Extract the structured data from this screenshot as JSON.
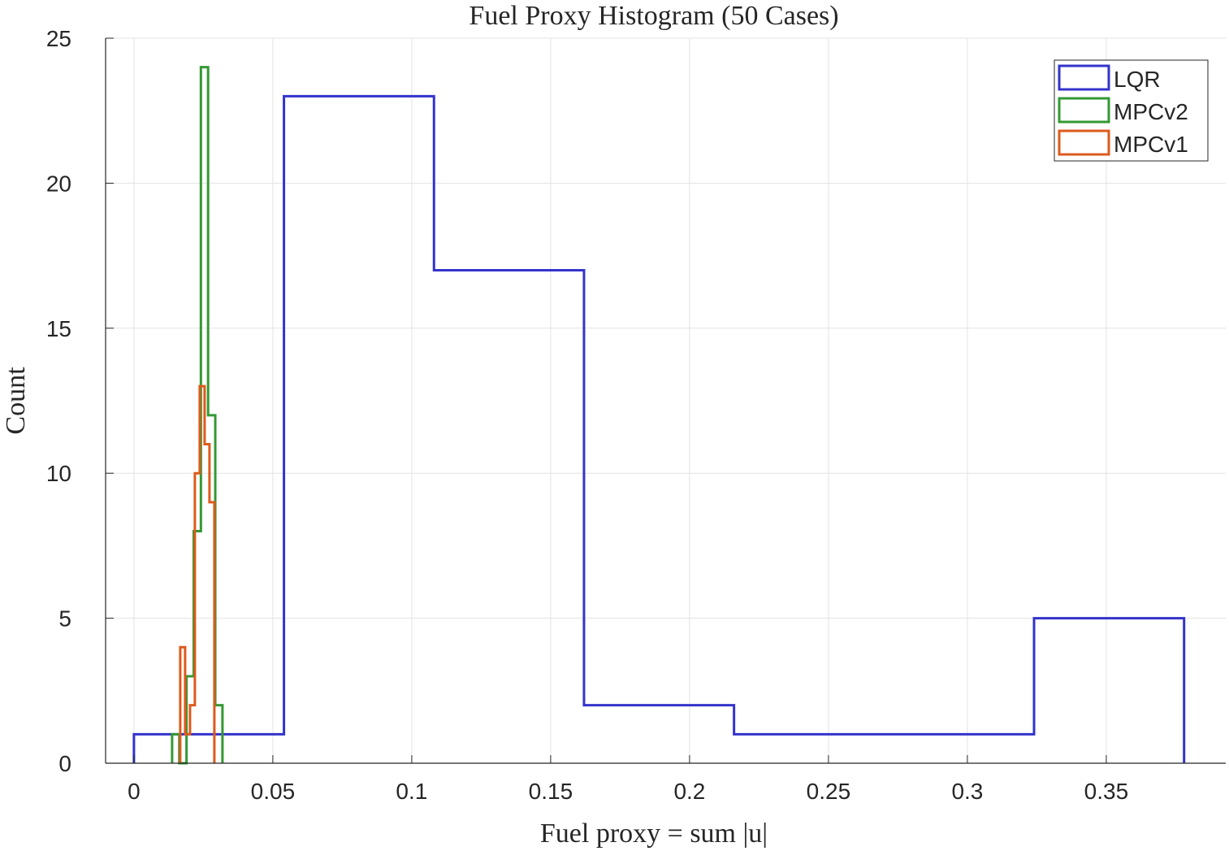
{
  "chart_data": {
    "type": "histogram-stairs",
    "title": "Fuel Proxy Histogram (50 Cases)",
    "xlabel": "Fuel proxy = sum |u|",
    "ylabel": "Count",
    "xlim": [
      -0.0102,
      0.393
    ],
    "ylim": [
      0,
      25
    ],
    "xticks": [
      0,
      0.05,
      0.1,
      0.15,
      0.2,
      0.25,
      0.3,
      0.35
    ],
    "xtick_labels": [
      "0",
      "0.05",
      "0.1",
      "0.15",
      "0.2",
      "0.25",
      "0.3",
      "0.35"
    ],
    "yticks": [
      0,
      5,
      10,
      15,
      20,
      25
    ],
    "ytick_labels": [
      "0",
      "5",
      "10",
      "15",
      "20",
      "25"
    ],
    "grid": true,
    "legend_position": "top-right",
    "series": [
      {
        "name": "LQR",
        "color": "#3333cc",
        "edges": [
          0,
          0.054,
          0.108,
          0.162,
          0.216,
          0.27,
          0.324,
          0.378
        ],
        "counts": [
          1,
          23,
          17,
          2,
          1,
          1,
          5
        ]
      },
      {
        "name": "MPCv2",
        "color": "#339933",
        "edges": [
          0.01374,
          0.01633,
          0.01892,
          0.02151,
          0.0241,
          0.02669,
          0.02928,
          0.03187
        ],
        "counts": [
          1,
          0,
          3,
          8,
          24,
          12,
          2
        ]
      },
      {
        "name": "MPCv1",
        "color": "#dd5a1c",
        "edges": [
          0.01667,
          0.01842,
          0.02018,
          0.02193,
          0.02368,
          0.02544,
          0.02719,
          0.02895
        ],
        "counts": [
          4,
          1,
          2,
          10,
          13,
          11,
          9
        ]
      }
    ]
  }
}
